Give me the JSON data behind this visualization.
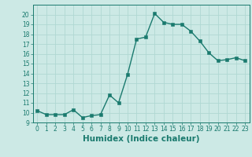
{
  "x": [
    0,
    1,
    2,
    3,
    4,
    5,
    6,
    7,
    8,
    9,
    10,
    11,
    12,
    13,
    14,
    15,
    16,
    17,
    18,
    19,
    20,
    21,
    22,
    23
  ],
  "y": [
    10.2,
    9.8,
    9.8,
    9.8,
    10.3,
    9.5,
    9.7,
    9.8,
    11.8,
    11.0,
    13.9,
    17.5,
    17.7,
    20.1,
    19.2,
    19.0,
    19.0,
    18.3,
    17.3,
    16.1,
    15.3,
    15.4,
    15.6,
    15.3
  ],
  "line_color": "#1a7a6e",
  "marker_color": "#1a7a6e",
  "bg_color": "#cce9e5",
  "grid_color": "#b0d8d3",
  "xlabel": "Humidex (Indice chaleur)",
  "xlim": [
    -0.5,
    23.5
  ],
  "ylim": [
    9,
    21
  ],
  "yticks": [
    9,
    10,
    11,
    12,
    13,
    14,
    15,
    16,
    17,
    18,
    19,
    20
  ],
  "xticks": [
    0,
    1,
    2,
    3,
    4,
    5,
    6,
    7,
    8,
    9,
    10,
    11,
    12,
    13,
    14,
    15,
    16,
    17,
    18,
    19,
    20,
    21,
    22,
    23
  ],
  "tick_fontsize": 5.5,
  "xlabel_fontsize": 7.5,
  "line_width": 1.0,
  "marker_size": 2.2
}
